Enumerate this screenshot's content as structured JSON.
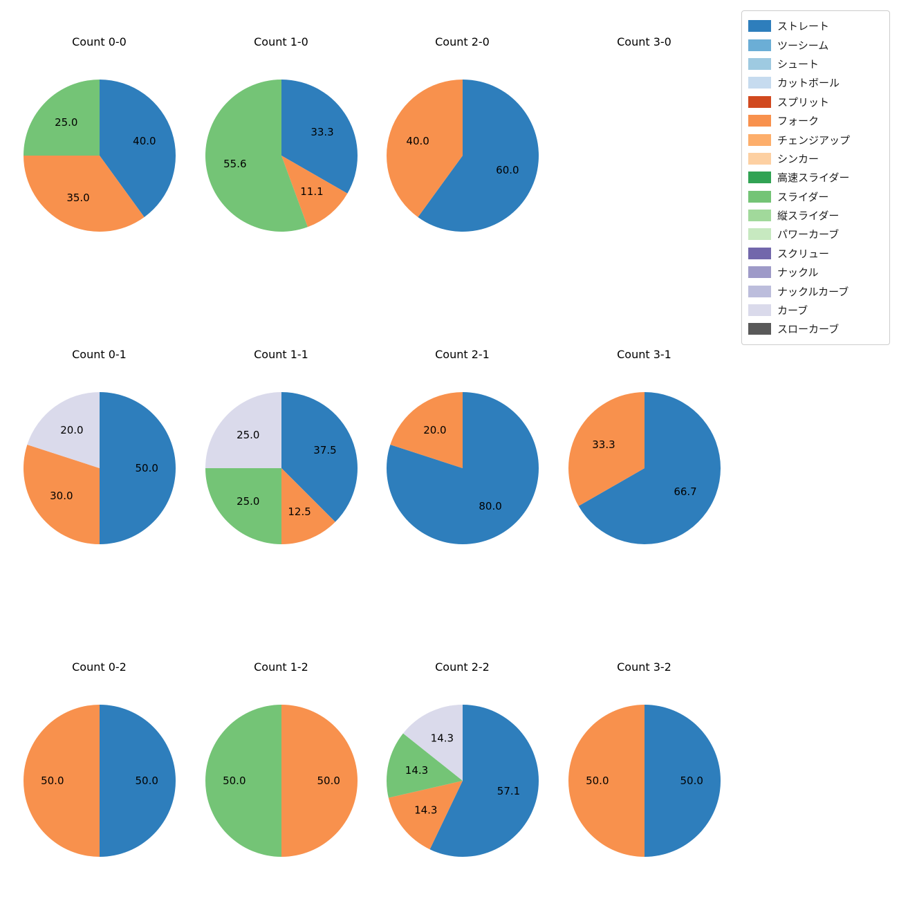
{
  "figure": {
    "background": "#ffffff",
    "grid": {
      "columns": 4,
      "rows": 3
    }
  },
  "legend": {
    "position": "top-right",
    "items": [
      {
        "label": "ストレート",
        "color": "#2e7ebc"
      },
      {
        "label": "ツーシーム",
        "color": "#6baed6"
      },
      {
        "label": "シュート",
        "color": "#9ecae1"
      },
      {
        "label": "カットボール",
        "color": "#c6dbef"
      },
      {
        "label": "スプリット",
        "color": "#d1491f"
      },
      {
        "label": "フォーク",
        "color": "#f8914d"
      },
      {
        "label": "チェンジアップ",
        "color": "#fdae6b"
      },
      {
        "label": "シンカー",
        "color": "#fdd0a2"
      },
      {
        "label": "高速スライダー",
        "color": "#31a354"
      },
      {
        "label": "スライダー",
        "color": "#74c476"
      },
      {
        "label": "縦スライダー",
        "color": "#a1d99b"
      },
      {
        "label": "パワーカーブ",
        "color": "#c7e9c0"
      },
      {
        "label": "スクリュー",
        "color": "#7267ab"
      },
      {
        "label": "ナックル",
        "color": "#9e9ac8"
      },
      {
        "label": "ナックルカーブ",
        "color": "#bcbddc"
      },
      {
        "label": "カーブ",
        "color": "#dadaeb"
      },
      {
        "label": "スローカーブ",
        "color": "#595959"
      }
    ]
  },
  "chart_data": [
    {
      "type": "pie",
      "title": "Count 0-0",
      "start_angle_deg_from_top_clockwise": 0,
      "slices": [
        {
          "label": "ストレート",
          "value": 40.0
        },
        {
          "label": "フォーク",
          "value": 35.0
        },
        {
          "label": "スライダー",
          "value": 25.0
        }
      ]
    },
    {
      "type": "pie",
      "title": "Count 1-0",
      "slices": [
        {
          "label": "ストレート",
          "value": 33.3
        },
        {
          "label": "フォーク",
          "value": 11.1
        },
        {
          "label": "スライダー",
          "value": 55.6
        }
      ]
    },
    {
      "type": "pie",
      "title": "Count 2-0",
      "slices": [
        {
          "label": "ストレート",
          "value": 60.0
        },
        {
          "label": "フォーク",
          "value": 40.0
        }
      ]
    },
    {
      "type": "pie",
      "title": "Count 3-0",
      "slices": []
    },
    {
      "type": "pie",
      "title": "Count 0-1",
      "slices": [
        {
          "label": "ストレート",
          "value": 50.0
        },
        {
          "label": "フォーク",
          "value": 30.0
        },
        {
          "label": "カーブ",
          "value": 20.0
        }
      ]
    },
    {
      "type": "pie",
      "title": "Count 1-1",
      "slices": [
        {
          "label": "ストレート",
          "value": 37.5
        },
        {
          "label": "フォーク",
          "value": 12.5
        },
        {
          "label": "スライダー",
          "value": 25.0
        },
        {
          "label": "カーブ",
          "value": 25.0
        }
      ]
    },
    {
      "type": "pie",
      "title": "Count 2-1",
      "slices": [
        {
          "label": "ストレート",
          "value": 80.0
        },
        {
          "label": "フォーク",
          "value": 20.0
        }
      ]
    },
    {
      "type": "pie",
      "title": "Count 3-1",
      "slices": [
        {
          "label": "ストレート",
          "value": 66.7
        },
        {
          "label": "フォーク",
          "value": 33.3
        }
      ]
    },
    {
      "type": "pie",
      "title": "Count 0-2",
      "slices": [
        {
          "label": "ストレート",
          "value": 50.0
        },
        {
          "label": "フォーク",
          "value": 50.0
        }
      ]
    },
    {
      "type": "pie",
      "title": "Count 1-2",
      "slices": [
        {
          "label": "フォーク",
          "value": 50.0
        },
        {
          "label": "スライダー",
          "value": 50.0
        }
      ]
    },
    {
      "type": "pie",
      "title": "Count 2-2",
      "slices": [
        {
          "label": "ストレート",
          "value": 57.1
        },
        {
          "label": "フォーク",
          "value": 14.3
        },
        {
          "label": "スライダー",
          "value": 14.3
        },
        {
          "label": "カーブ",
          "value": 14.3
        }
      ]
    },
    {
      "type": "pie",
      "title": "Count 3-2",
      "slices": [
        {
          "label": "ストレート",
          "value": 50.0
        },
        {
          "label": "フォーク",
          "value": 50.0
        }
      ]
    }
  ]
}
